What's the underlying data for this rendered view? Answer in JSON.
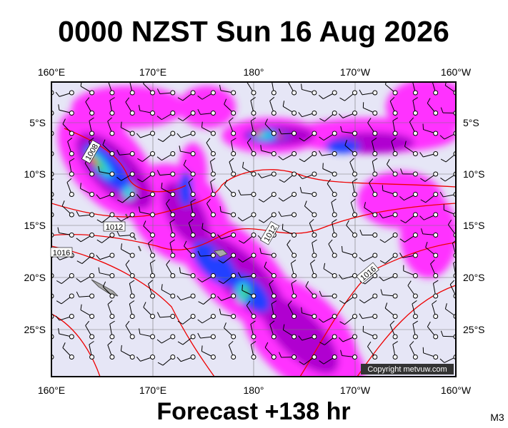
{
  "title": "0000 NZST Sun 16 Aug 2026",
  "longitude_labels": [
    "160°E",
    "170°E",
    "180°",
    "170°W",
    "160°W"
  ],
  "latitude_labels": [
    "5°S",
    "10°S",
    "15°S",
    "20°S",
    "25°S"
  ],
  "isobar_labels": [
    "1008",
    "1012",
    "1016",
    "1012",
    "1016"
  ],
  "copyright": "Copyright metvuw.com",
  "footer": "Forecast +138 hr",
  "model": "M3"
}
